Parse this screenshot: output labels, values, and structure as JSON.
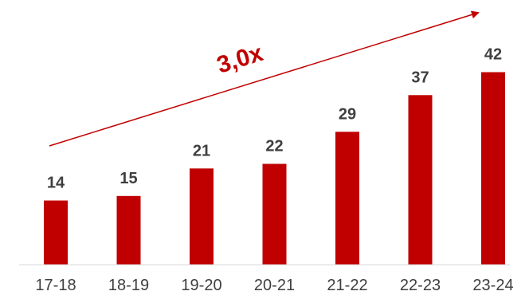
{
  "chart_data": {
    "type": "bar",
    "categories": [
      "17-18",
      "18-19",
      "19-20",
      "20-21",
      "21-22",
      "22-23",
      "23-24"
    ],
    "values": [
      14,
      15,
      21,
      22,
      29,
      37,
      42
    ],
    "ylim": [
      0,
      48
    ],
    "grid": false,
    "annotations": [
      {
        "text": "3,0x",
        "type": "growth-arrow"
      }
    ]
  },
  "colors": {
    "bar": "#c00000",
    "arrow": "#c00000",
    "baseline": "#d9d9d9",
    "text": "#3f3f3f"
  }
}
